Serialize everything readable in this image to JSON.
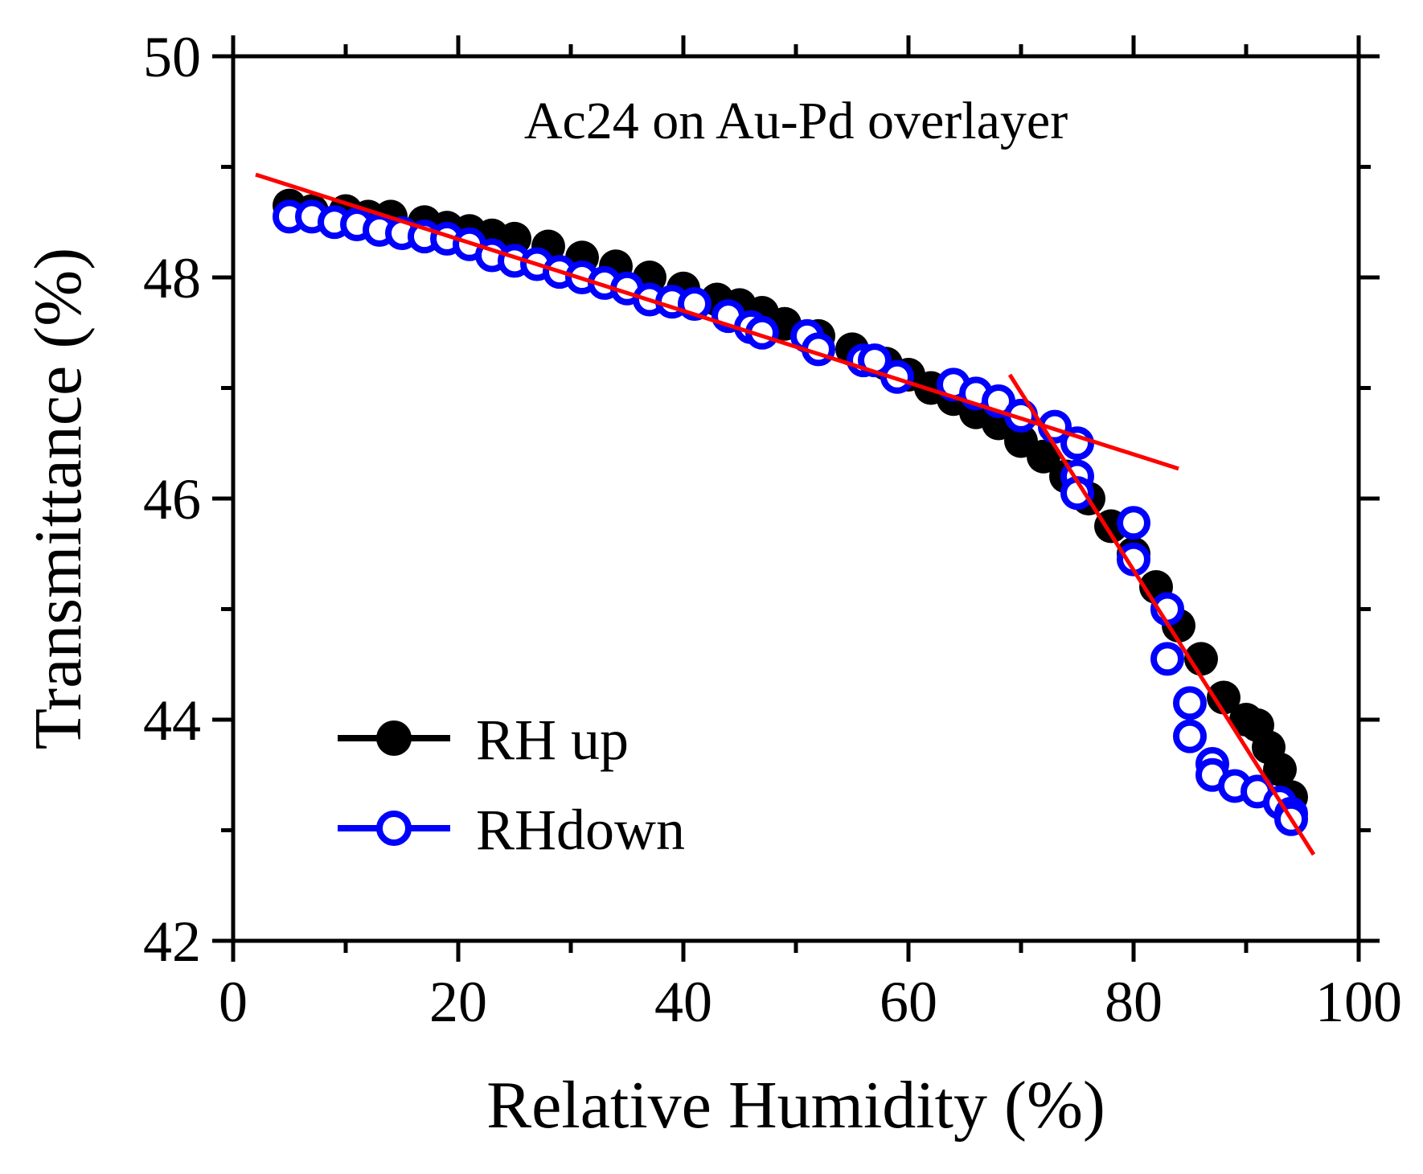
{
  "chart_data": {
    "type": "scatter",
    "annotation": "Ac24 on Au-Pd overlayer",
    "xlabel": "Relative Humidity (%)",
    "ylabel": "Transmittance (%)",
    "xlim": [
      0,
      100
    ],
    "ylim": [
      42,
      50
    ],
    "xticks": [
      "0",
      "20",
      "40",
      "60",
      "80",
      "100"
    ],
    "yticks": [
      "42",
      "44",
      "46",
      "48",
      "50"
    ],
    "legend_position": "bottom-left",
    "colors": {
      "up": "#000000",
      "down": "#0000ff",
      "fit": "#ff0000"
    },
    "series": [
      {
        "name": "RH up",
        "marker": "filled-circle",
        "x": [
          5,
          7,
          10,
          12,
          14,
          17,
          19,
          21,
          23,
          25,
          28,
          31,
          34,
          37,
          40,
          43,
          45,
          47,
          49,
          52,
          55,
          58,
          60,
          62,
          64,
          66,
          68,
          70,
          72,
          74,
          76,
          78,
          80,
          82,
          84,
          86,
          88,
          90,
          91,
          92,
          93,
          94
        ],
        "y": [
          48.65,
          48.6,
          48.6,
          48.55,
          48.55,
          48.5,
          48.45,
          48.42,
          48.38,
          48.35,
          48.28,
          48.18,
          48.1,
          48.0,
          47.9,
          47.8,
          47.75,
          47.68,
          47.58,
          47.47,
          47.35,
          47.22,
          47.12,
          47.0,
          46.9,
          46.78,
          46.68,
          46.52,
          46.38,
          46.2,
          46.0,
          45.75,
          45.5,
          45.2,
          44.85,
          44.55,
          44.2,
          44.0,
          43.95,
          43.75,
          43.55,
          43.3
        ]
      },
      {
        "name": "RHdown",
        "marker": "open-circle",
        "x": [
          5,
          7,
          9,
          11,
          13,
          15,
          17,
          19,
          21,
          23,
          25,
          27,
          29,
          31,
          33,
          35,
          37,
          39,
          41,
          44,
          46,
          47,
          51,
          52,
          56,
          57,
          59,
          64,
          66,
          68,
          70,
          73,
          75,
          75,
          75,
          80,
          80,
          83,
          83,
          85,
          85,
          87,
          87,
          89,
          91,
          93,
          94,
          94
        ],
        "y": [
          48.55,
          48.55,
          48.5,
          48.48,
          48.43,
          48.4,
          48.37,
          48.35,
          48.3,
          48.2,
          48.15,
          48.12,
          48.05,
          48.0,
          47.95,
          47.9,
          47.8,
          47.78,
          47.76,
          47.65,
          47.55,
          47.5,
          47.47,
          47.35,
          47.25,
          47.25,
          47.1,
          47.03,
          46.95,
          46.88,
          46.75,
          46.65,
          46.5,
          46.2,
          46.05,
          45.78,
          45.45,
          45.0,
          44.55,
          44.15,
          43.85,
          43.6,
          43.5,
          43.4,
          43.35,
          43.25,
          43.15,
          43.1
        ]
      }
    ],
    "fit_lines": [
      {
        "x": [
          2,
          84
        ],
        "y": [
          48.93,
          46.27
        ]
      },
      {
        "x": [
          69,
          96
        ],
        "y": [
          47.12,
          42.78
        ]
      }
    ]
  }
}
